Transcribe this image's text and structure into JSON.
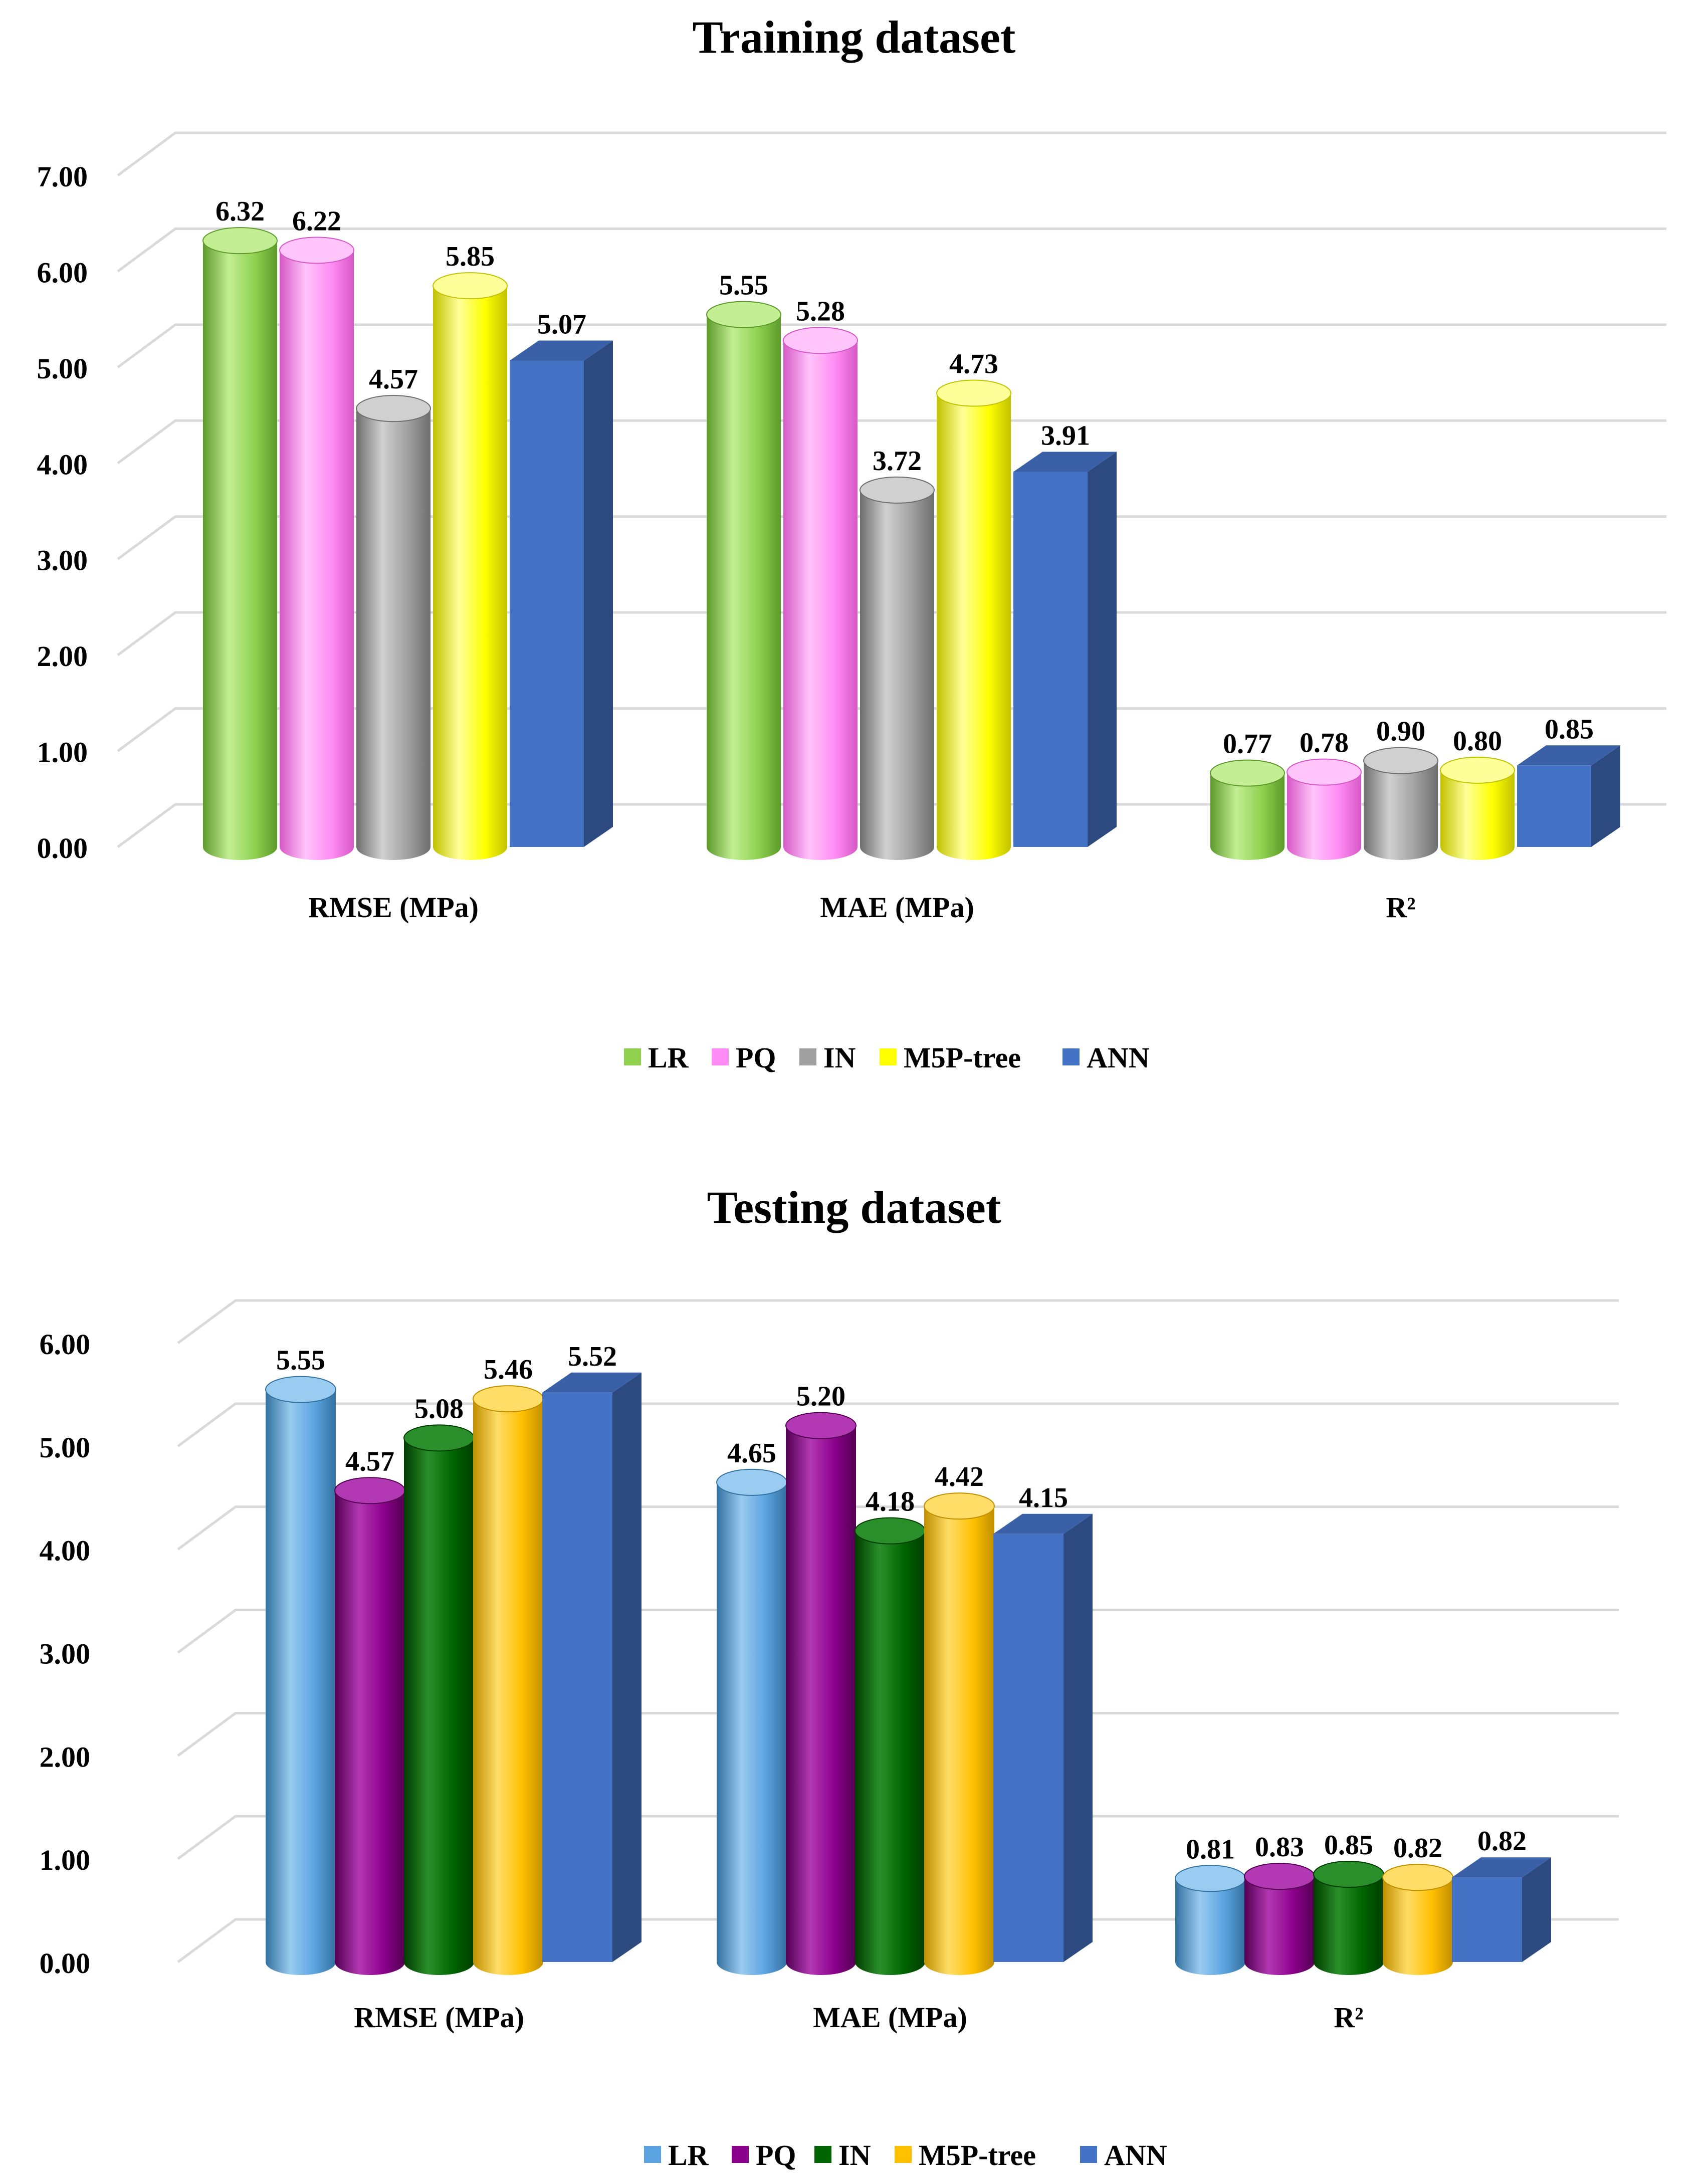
{
  "chart_data": [
    {
      "type": "bar",
      "title": "Training dataset",
      "categories": [
        "RMSE (MPa)",
        "MAE (MPa)",
        "R²"
      ],
      "ylim": [
        0,
        7
      ],
      "yticks": [
        "0.00",
        "1.00",
        "2.00",
        "3.00",
        "4.00",
        "5.00",
        "6.00",
        "7.00"
      ],
      "grid": true,
      "legend_position": "bottom",
      "series": [
        {
          "name": "LR",
          "values": [
            6.32,
            5.55,
            0.77
          ],
          "labels": [
            "6.32",
            "5.55",
            "0.77"
          ],
          "shape": "cylinder",
          "color": "#8fd14f",
          "dark": "#5c9a2a",
          "light": "#c3ee93"
        },
        {
          "name": "PQ",
          "values": [
            6.22,
            5.28,
            0.78
          ],
          "labels": [
            "6.22",
            "5.28",
            "0.78"
          ],
          "shape": "cylinder",
          "color": "#ff8cf4",
          "dark": "#d658c6",
          "light": "#ffc4fa"
        },
        {
          "name": "IN",
          "values": [
            4.57,
            3.72,
            0.9
          ],
          "labels": [
            "4.57",
            "3.72",
            "0.90"
          ],
          "shape": "cylinder",
          "color": "#a0a0a0",
          "dark": "#6e6e6e",
          "light": "#d0d0d0"
        },
        {
          "name": "M5P-tree",
          "values": [
            5.85,
            4.73,
            0.8
          ],
          "labels": [
            "5.85",
            "4.73",
            "0.80"
          ],
          "shape": "cylinder",
          "color": "#ffff00",
          "dark": "#c2c200",
          "light": "#ffff99"
        },
        {
          "name": "ANN",
          "values": [
            5.07,
            3.91,
            0.85
          ],
          "labels": [
            "5.07",
            "3.91",
            "0.85"
          ],
          "shape": "box",
          "color": "#4472c4",
          "dark": "#2d4a80",
          "light": "#3a61a8"
        }
      ]
    },
    {
      "type": "bar",
      "title": "Testing dataset",
      "categories": [
        "RMSE (MPa)",
        "MAE (MPa)",
        "R²"
      ],
      "ylim": [
        0,
        6
      ],
      "yticks": [
        "0.00",
        "1.00",
        "2.00",
        "3.00",
        "4.00",
        "5.00",
        "6.00"
      ],
      "grid": true,
      "legend_position": "bottom",
      "series": [
        {
          "name": "LR",
          "values": [
            5.55,
            4.65,
            0.81
          ],
          "labels": [
            "5.55",
            "4.65",
            "0.81"
          ],
          "shape": "cylinder",
          "color": "#5ba3e0",
          "dark": "#33719f",
          "light": "#9acbf1"
        },
        {
          "name": "PQ",
          "values": [
            4.57,
            5.2,
            0.83
          ],
          "labels": [
            "4.57",
            "5.20",
            "0.83"
          ],
          "shape": "cylinder",
          "color": "#8b008b",
          "dark": "#520052",
          "light": "#b338b3"
        },
        {
          "name": "IN",
          "values": [
            5.08,
            4.18,
            0.85
          ],
          "labels": [
            "5.08",
            "4.18",
            "0.85"
          ],
          "shape": "cylinder",
          "color": "#006400",
          "dark": "#003c00",
          "light": "#2a8f2a"
        },
        {
          "name": "M5P-tree",
          "values": [
            5.46,
            4.42,
            0.82
          ],
          "labels": [
            "5.46",
            "4.42",
            "0.82"
          ],
          "shape": "cylinder",
          "color": "#ffc000",
          "dark": "#c08f00",
          "light": "#ffdd66"
        },
        {
          "name": "ANN",
          "values": [
            5.52,
            4.15,
            0.82
          ],
          "labels": [
            "5.52",
            "4.15",
            "0.82"
          ],
          "shape": "box",
          "color": "#4472c4",
          "dark": "#2d4a80",
          "light": "#3a61a8"
        }
      ]
    }
  ]
}
